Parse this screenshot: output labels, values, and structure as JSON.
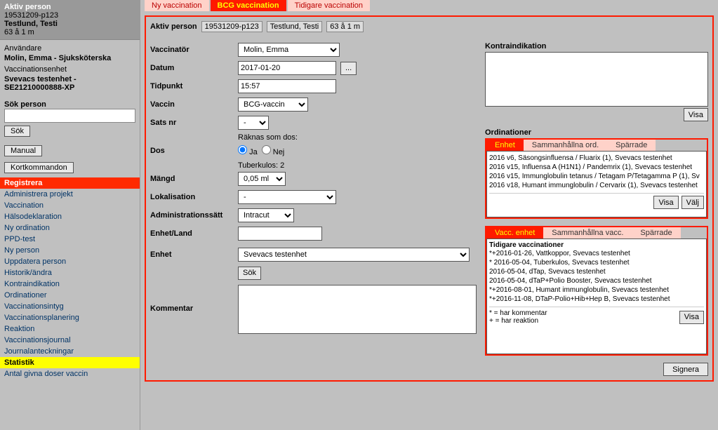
{
  "sidebar": {
    "aktiv_title": "Aktiv person",
    "aktiv_id": "19531209-p123",
    "aktiv_name": "Testlund, Testi",
    "aktiv_age": "63 å 1 m",
    "user_label": "Användare",
    "user_name": "Molin, Emma - Sjuksköterska",
    "unit_label": "Vaccinationsenhet",
    "unit_name": "Svevacs testenhet - SE21210000888-XP",
    "search_label": "Sök person",
    "search_btn": "Sök",
    "manual_btn": "Manual",
    "kort_btn": "Kortkommandon",
    "nav": [
      {
        "label": "Registrera",
        "cls": "active-red"
      },
      {
        "label": "Administrera projekt"
      },
      {
        "label": "Vaccination"
      },
      {
        "label": "Hälsodeklaration"
      },
      {
        "label": "Ny ordination"
      },
      {
        "label": "PPD-test"
      },
      {
        "label": "Ny person"
      },
      {
        "label": "Uppdatera person"
      },
      {
        "label": "Historik/ändra"
      },
      {
        "label": "Kontraindikation"
      },
      {
        "label": "Ordinationer"
      },
      {
        "label": "Vaccinationsintyg"
      },
      {
        "label": "Vaccinationsplanering"
      },
      {
        "label": "Reaktion"
      },
      {
        "label": "Vaccinationsjournal"
      },
      {
        "label": "Journalanteckningar"
      },
      {
        "label": "Statistik",
        "cls": "active-yellow"
      },
      {
        "label": "Antal givna doser vaccin"
      }
    ]
  },
  "tabs": {
    "items": [
      {
        "label": "Ny vaccination"
      },
      {
        "label": "BCG vaccination",
        "active": true
      },
      {
        "label": "Tidigare vaccination"
      }
    ]
  },
  "main": {
    "aktiv_label": "Aktiv person",
    "aktiv_id": "19531209-p123",
    "aktiv_name": "Testlund, Testi",
    "aktiv_age": "63 å 1 m",
    "fields": {
      "vaccinator_label": "Vaccinatör",
      "vaccinator_value": "Molin, Emma",
      "datum_label": "Datum",
      "datum_value": "2017-01-20",
      "datum_more": "...",
      "tidpunkt_label": "Tidpunkt",
      "tidpunkt_value": "15:57",
      "vaccin_label": "Vaccin",
      "vaccin_value": "BCG-vaccin",
      "sats_label": "Sats nr",
      "sats_value": "-",
      "raknas_label": "Räknas som dos:",
      "dos_label": "Dos",
      "dos_ja": "Ja",
      "dos_nej": "Nej",
      "tuberkulos": "Tuberkulos: 2",
      "mangd_label": "Mängd",
      "mangd_value": "0,05 ml",
      "lokal_label": "Lokalisation",
      "lokal_value": "-",
      "adm_label": "Administrationssätt",
      "adm_value": "Intracut",
      "enhetland_label": "Enhet/Land",
      "enhetland_value": "",
      "enhet_label": "Enhet",
      "enhet_value": "Svevacs testenhet",
      "sok_btn": "Sök",
      "kommentar_label": "Kommentar",
      "kommentar_value": ""
    }
  },
  "panels": {
    "kontra": {
      "title": "Kontraindikation",
      "visa": "Visa"
    },
    "ord": {
      "title": "Ordinationer",
      "tabs": [
        "Enhet",
        "Sammanhållna ord.",
        "Spärrade"
      ],
      "items": [
        "2016 v6, Säsongsinfluensa / Fluarix (1), Svevacs testenhet",
        "2016 v15, Influensa A (H1N1) / Pandemrix (1), Svevacs testenhet",
        "2016 v15, Immunglobulin tetanus / Tetagam P/Tetagamma P (1), Sv",
        "2016 v18, Humant immunglobulin / Cervarix (1), Svevacs testenhet"
      ],
      "visa": "Visa",
      "valj": "Välj"
    },
    "tidig": {
      "tabs": [
        "Vacc. enhet",
        "Sammanhållna vacc.",
        "Spärrade"
      ],
      "title": "Tidigare vaccinationer",
      "items": [
        "*+2016-01-26, Vattkoppor, Svevacs testenhet",
        "* 2016-05-04, Tuberkulos, Svevacs testenhet",
        "2016-05-04, dTap, Svevacs testenhet",
        "2016-05-04, dTaP+Polio Booster, Svevacs testenhet",
        "*+2016-08-01, Humant immunglobulin, Svevacs testenhet",
        "*+2016-11-08, DTaP-Polio+Hib+Hep B, Svevacs testenhet"
      ],
      "legend1": "* = har kommentar",
      "legend2": "+ = har reaktion",
      "visa": "Visa"
    },
    "signera": "Signera"
  }
}
